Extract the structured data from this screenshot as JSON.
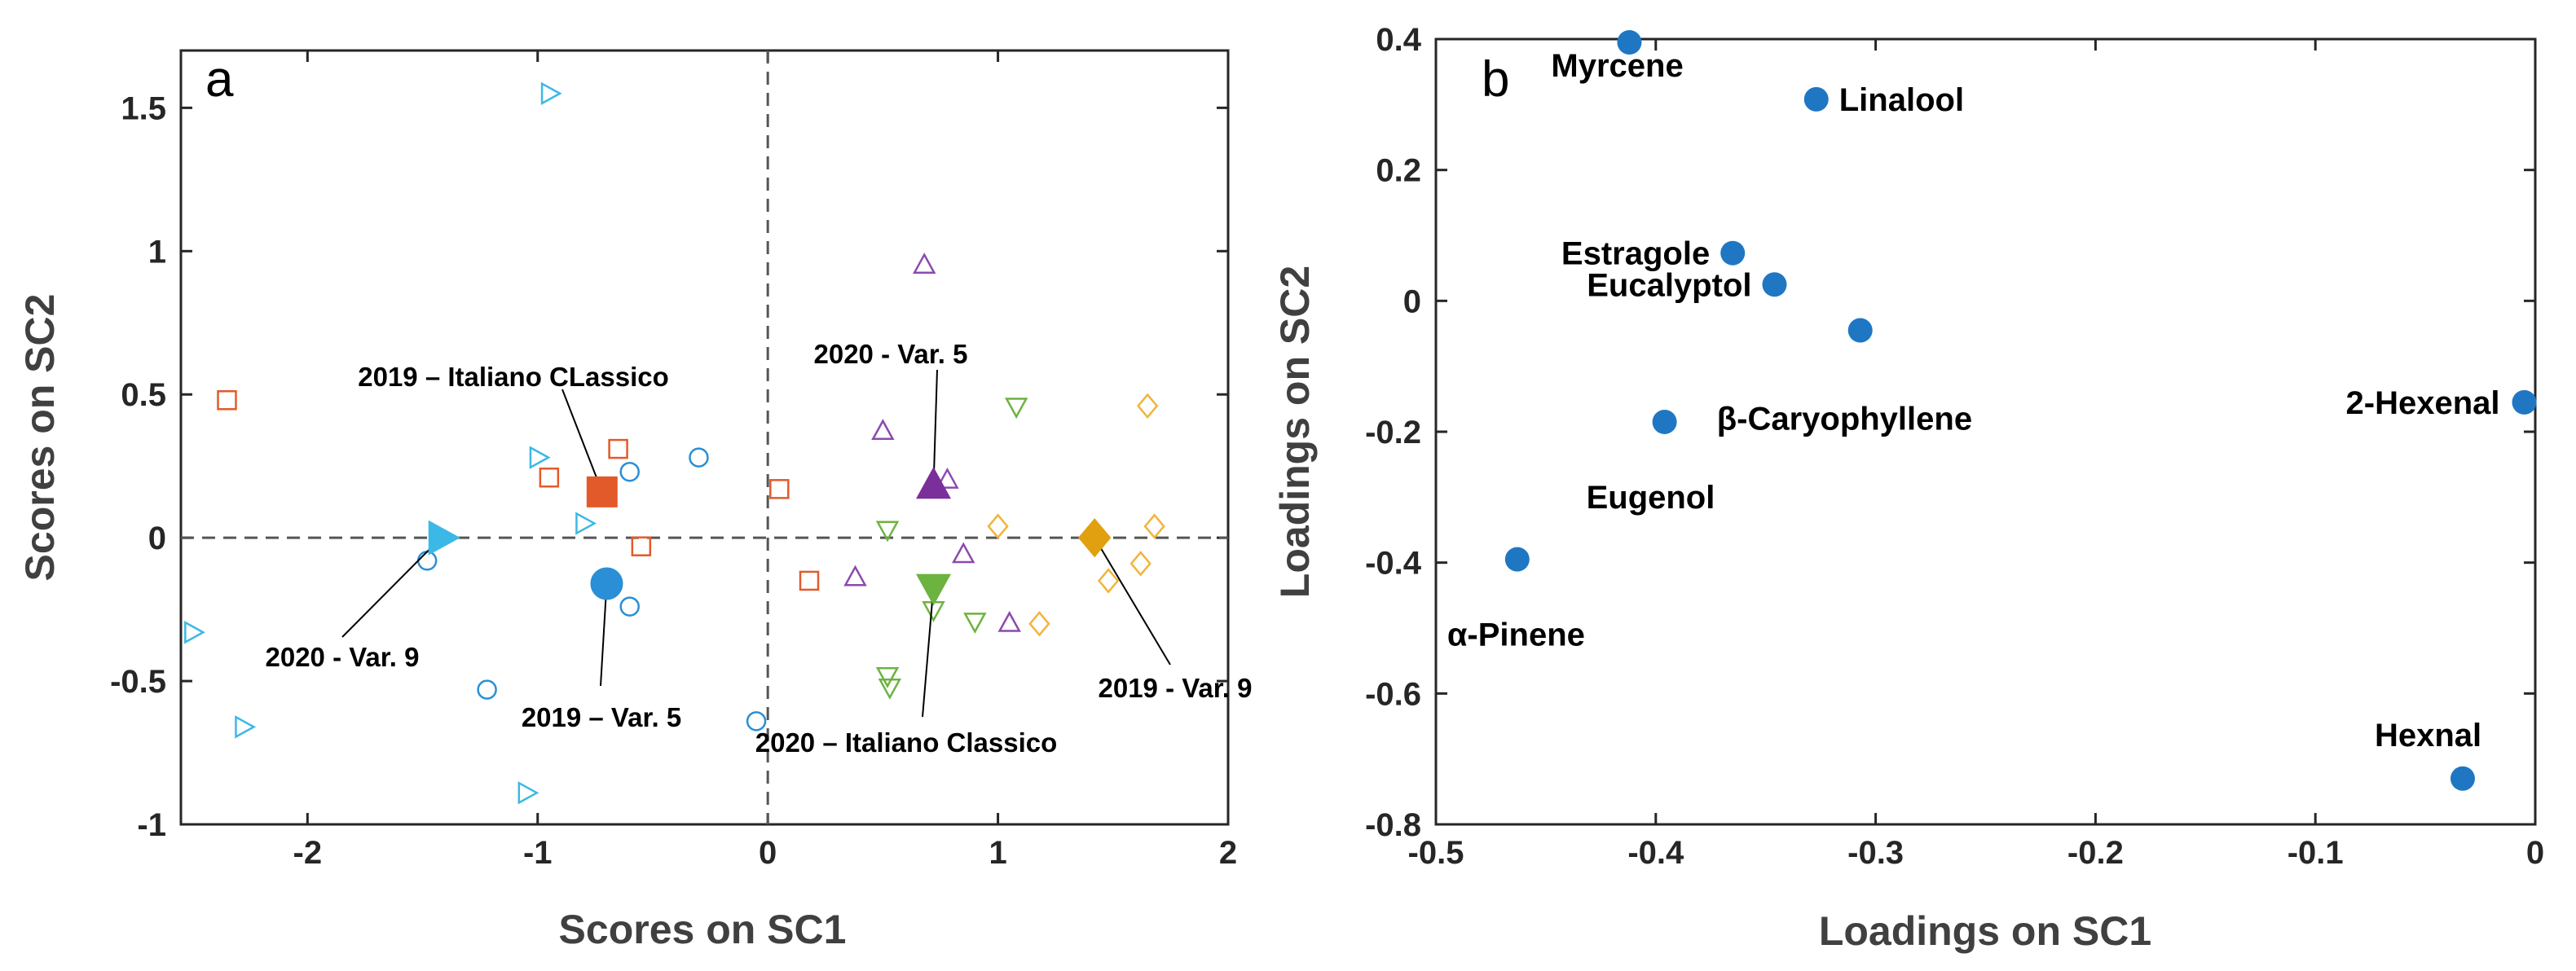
{
  "chart_data": [
    {
      "type": "scatter",
      "panel_label": "a",
      "xlabel": "Scores on SC1",
      "ylabel": "Scores on SC2",
      "xlim": [
        -2.55,
        2
      ],
      "ylim": [
        -1,
        1.7
      ],
      "xticks": [
        -2,
        -1,
        0,
        1,
        2
      ],
      "yticks": [
        -1,
        -0.5,
        0,
        0.5,
        1,
        1.5
      ],
      "xtick_labels": [
        "-2",
        "-1",
        "0",
        "1",
        "2"
      ],
      "ytick_labels": [
        "-1",
        "-0.5",
        "0",
        "0.5",
        "1",
        "1.5"
      ],
      "colors": {
        "red": "#E35A2A",
        "blue": "#2A8FD6",
        "cyan": "#3CB8E6",
        "purple": "#8A4AAF",
        "green": "#6DB33F",
        "gold": "#F2B43A",
        "goldDark": "#E0A010",
        "purpleDark": "#7A2F9B",
        "refline": "#555555"
      },
      "series": [
        {
          "name": "2019 - Italiano Classico",
          "marker": "square",
          "color": "#E35A2A",
          "points": [
            [
              -2.35,
              0.48
            ],
            [
              -0.95,
              0.21
            ],
            [
              -0.65,
              0.31
            ],
            [
              -0.55,
              -0.03
            ],
            [
              0.05,
              0.17
            ],
            [
              0.18,
              -0.15
            ]
          ],
          "centroid": [
            -0.72,
            0.16
          ]
        },
        {
          "name": "2019 - Var. 5",
          "marker": "circle",
          "color": "#2A8FD6",
          "points": [
            [
              -1.48,
              -0.08
            ],
            [
              -0.6,
              0.23
            ],
            [
              -0.3,
              0.28
            ],
            [
              -0.6,
              -0.24
            ],
            [
              -1.22,
              -0.53
            ],
            [
              -0.05,
              -0.64
            ]
          ],
          "centroid": [
            -0.7,
            -0.16
          ]
        },
        {
          "name": "2020 - Var. 9",
          "marker": "triangle-right",
          "color": "#3CB8E6",
          "points": [
            [
              -0.95,
              1.55
            ],
            [
              -1.0,
              0.28
            ],
            [
              -0.8,
              0.05
            ],
            [
              -2.5,
              -0.33
            ],
            [
              -2.28,
              -0.66
            ],
            [
              -1.05,
              -0.89
            ]
          ],
          "centroid": [
            -1.42,
            0.0
          ]
        },
        {
          "name": "2020 - Var. 5",
          "marker": "triangle-up",
          "color": "#8A4AAF",
          "points": [
            [
              0.68,
              0.95
            ],
            [
              0.5,
              0.37
            ],
            [
              0.78,
              0.2
            ],
            [
              0.85,
              -0.06
            ],
            [
              0.38,
              -0.14
            ],
            [
              1.05,
              -0.3
            ]
          ],
          "centroid": [
            0.72,
            0.18
          ]
        },
        {
          "name": "2020 - Italiano Classico",
          "marker": "triangle-down",
          "color": "#6DB33F",
          "points": [
            [
              1.08,
              0.46
            ],
            [
              0.52,
              0.03
            ],
            [
              0.72,
              -0.25
            ],
            [
              0.9,
              -0.29
            ],
            [
              0.52,
              -0.48
            ],
            [
              0.53,
              -0.52
            ]
          ],
          "centroid": [
            0.72,
            -0.17
          ]
        },
        {
          "name": "2019 - Var. 9",
          "marker": "diamond",
          "color": "#F2B43A",
          "points": [
            [
              1.65,
              0.46
            ],
            [
              1.68,
              0.04
            ],
            [
              1.0,
              0.04
            ],
            [
              1.62,
              -0.09
            ],
            [
              1.48,
              -0.15
            ],
            [
              1.18,
              -0.3
            ]
          ],
          "centroid": [
            1.42,
            0.0
          ]
        }
      ],
      "annotations": [
        {
          "text": "2019 – Italiano CLassico",
          "target": [
            -0.72,
            0.16
          ]
        },
        {
          "text": "2020 - Var. 5",
          "target": [
            0.72,
            0.18
          ]
        },
        {
          "text": "2020 - Var. 9",
          "target": [
            -1.42,
            0.0
          ]
        },
        {
          "text": "2019 – Var. 5",
          "target": [
            -0.7,
            -0.16
          ]
        },
        {
          "text": "2020 – Italiano Classico",
          "target": [
            0.72,
            -0.17
          ]
        },
        {
          "text": "2019 - Var. 9",
          "target": [
            1.42,
            0.0
          ]
        }
      ]
    },
    {
      "type": "scatter",
      "panel_label": "b",
      "xlabel": "Loadings on SC1",
      "ylabel": "Loadings on SC2",
      "xlim": [
        -0.5,
        0
      ],
      "ylim": [
        -0.8,
        0.4
      ],
      "xticks": [
        -0.5,
        -0.4,
        -0.3,
        -0.2,
        -0.1,
        0
      ],
      "yticks": [
        -0.8,
        -0.6,
        -0.4,
        -0.2,
        0,
        0.2,
        0.4
      ],
      "xtick_labels": [
        "-0.5",
        "-0.4",
        "-0.3",
        "-0.2",
        "-0.1",
        "0"
      ],
      "ytick_labels": [
        "-0.8",
        "-0.6",
        "-0.4",
        "-0.2",
        "0",
        "0.2",
        "0.4"
      ],
      "color": "#1F77C4",
      "points": [
        {
          "label": "Myrcene",
          "x": -0.412,
          "y": 0.395
        },
        {
          "label": "Linalool",
          "x": -0.327,
          "y": 0.308
        },
        {
          "label": "Estragole",
          "x": -0.365,
          "y": 0.073
        },
        {
          "label": "Eucalyptol",
          "x": -0.346,
          "y": 0.025
        },
        {
          "label": "β-Caryophyllene",
          "x": -0.307,
          "y": -0.045
        },
        {
          "label": "Eugenol",
          "x": -0.396,
          "y": -0.185
        },
        {
          "label": "α-Pinene",
          "x": -0.463,
          "y": -0.395
        },
        {
          "label": "2-Hexenal",
          "x": -0.005,
          "y": -0.155
        },
        {
          "label": "Hexnal",
          "x": -0.033,
          "y": -0.73
        }
      ]
    }
  ]
}
